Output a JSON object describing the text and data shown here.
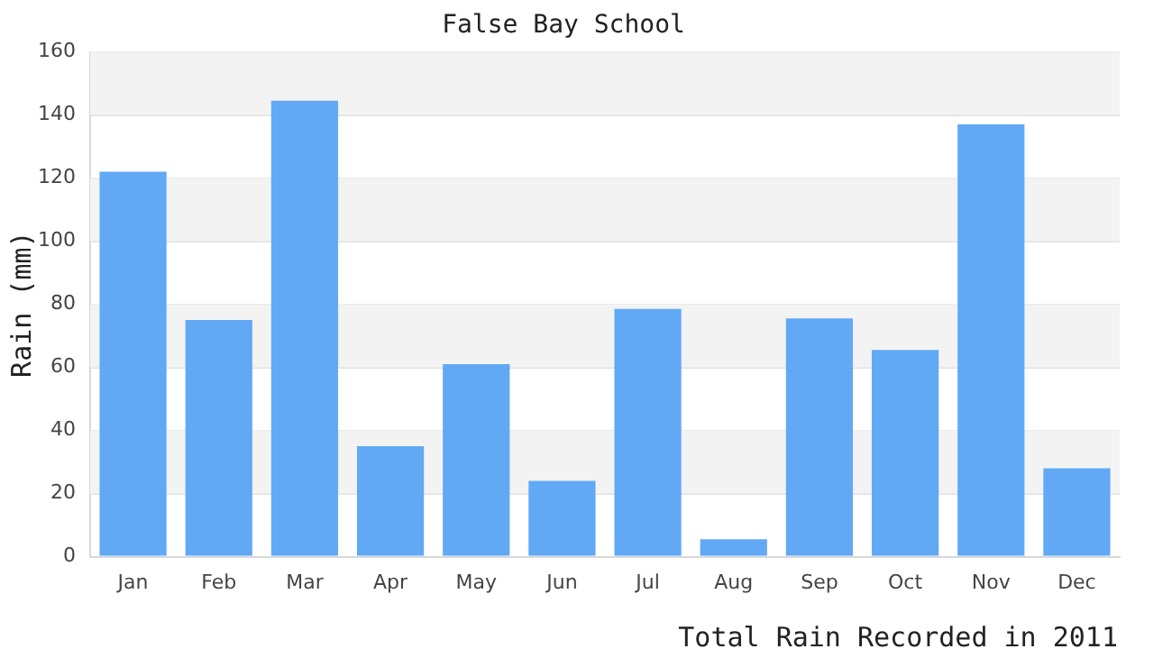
{
  "chart_data": {
    "type": "bar",
    "title": "False Bay School",
    "ylabel": "Rain (mm)",
    "categories": [
      "Jan",
      "Feb",
      "Mar",
      "Apr",
      "May",
      "Jun",
      "Jul",
      "Aug",
      "Sep",
      "Oct",
      "Nov",
      "Dec"
    ],
    "values": [
      122,
      75,
      144.5,
      35,
      61,
      24,
      78.5,
      5.5,
      75.5,
      65.5,
      137,
      28
    ],
    "color": "#61a9f5",
    "ylim": [
      0,
      160
    ],
    "yticks": [
      0,
      20,
      40,
      60,
      80,
      100,
      120,
      140,
      160
    ],
    "grid": "y",
    "legend": false,
    "annotations": [
      "Total Rain Recorded in 2011"
    ]
  }
}
